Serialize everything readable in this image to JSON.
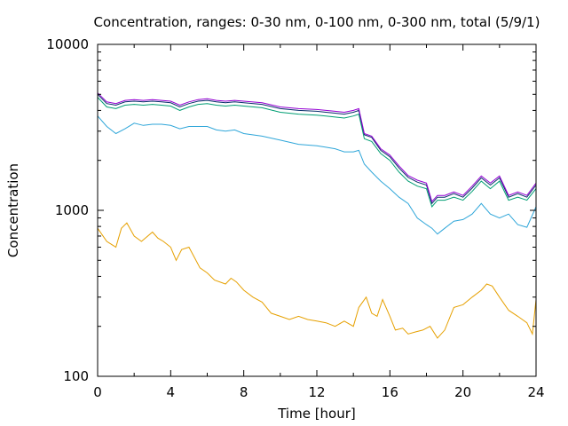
{
  "chart_data": {
    "type": "line",
    "title": "Concentration, ranges: 0-30 nm, 0-100 nm, 0-300 nm, total (5/9/1)",
    "xlabel": "Time [hour]",
    "ylabel": "Concentration",
    "xlim": [
      0,
      24
    ],
    "ylim": [
      100,
      10000
    ],
    "yscale": "log",
    "grid": false,
    "legend": "none",
    "xticks": [
      0,
      4,
      8,
      12,
      16,
      20,
      24
    ],
    "xtick_labels": [
      "0",
      "4",
      "8",
      "12",
      "16",
      "20",
      "24"
    ],
    "yticks": [
      100,
      1000,
      10000
    ],
    "ytick_labels": [
      "100",
      "1000",
      "10000"
    ],
    "series": [
      {
        "color": "#e6a000",
        "x": [
          0,
          0.5,
          1,
          1.3,
          1.6,
          2,
          2.4,
          3,
          3.3,
          3.6,
          4,
          4.3,
          4.6,
          5,
          5.3,
          5.6,
          6,
          6.4,
          7,
          7.3,
          7.6,
          8,
          8.5,
          9,
          9.5,
          10,
          10.5,
          11,
          11.5,
          12,
          12.5,
          13,
          13.5,
          14,
          14.3,
          14.7,
          15,
          15.3,
          15.6,
          16,
          16.3,
          16.7,
          17,
          17.4,
          17.8,
          18.2,
          18.6,
          19,
          19.5,
          20,
          20.5,
          21,
          21.3,
          21.6,
          22,
          22.5,
          23,
          23.5,
          23.8,
          24
        ],
        "values": [
          780,
          650,
          600,
          780,
          840,
          700,
          650,
          740,
          680,
          650,
          600,
          500,
          580,
          600,
          520,
          450,
          420,
          380,
          360,
          390,
          370,
          330,
          300,
          280,
          240,
          230,
          220,
          230,
          220,
          215,
          210,
          200,
          215,
          200,
          260,
          300,
          240,
          230,
          290,
          230,
          190,
          195,
          180,
          185,
          190,
          200,
          170,
          190,
          260,
          270,
          300,
          330,
          360,
          350,
          300,
          250,
          230,
          210,
          180,
          290
        ]
      },
      {
        "color": "#2fa6d9",
        "x": [
          0,
          0.5,
          1,
          1.5,
          2,
          2.5,
          3,
          3.5,
          4,
          4.5,
          5,
          5.5,
          6,
          6.5,
          7,
          7.5,
          8,
          9,
          10,
          11,
          12,
          12.5,
          13,
          13.5,
          14,
          14.3,
          14.6,
          15,
          15.5,
          16,
          16.5,
          17,
          17.5,
          18,
          18.3,
          18.6,
          19,
          19.5,
          20,
          20.5,
          21,
          21.5,
          22,
          22.5,
          23,
          23.5,
          24
        ],
        "values": [
          3700,
          3200,
          2900,
          3100,
          3350,
          3250,
          3300,
          3300,
          3250,
          3100,
          3200,
          3200,
          3200,
          3050,
          3000,
          3050,
          2900,
          2800,
          2650,
          2500,
          2450,
          2400,
          2350,
          2250,
          2250,
          2300,
          1900,
          1700,
          1500,
          1350,
          1200,
          1100,
          900,
          820,
          780,
          720,
          780,
          860,
          880,
          950,
          1100,
          950,
          900,
          950,
          820,
          790,
          1050
        ]
      },
      {
        "color": "#009e73",
        "x": [
          0,
          0.5,
          1,
          1.5,
          2,
          2.5,
          3,
          3.5,
          4,
          4.5,
          5,
          5.5,
          6,
          6.5,
          7,
          7.5,
          8,
          9,
          10,
          11,
          12,
          12.5,
          13,
          13.5,
          14,
          14.3,
          14.6,
          15,
          15.5,
          16,
          16.5,
          17,
          17.5,
          18,
          18.3,
          18.6,
          19,
          19.5,
          20,
          20.5,
          21,
          21.5,
          22,
          22.5,
          23,
          23.5,
          24
        ],
        "values": [
          4800,
          4200,
          4100,
          4300,
          4350,
          4300,
          4350,
          4300,
          4250,
          4000,
          4200,
          4350,
          4400,
          4300,
          4250,
          4300,
          4250,
          4150,
          3900,
          3800,
          3750,
          3700,
          3650,
          3600,
          3700,
          3800,
          2700,
          2600,
          2200,
          2000,
          1700,
          1500,
          1400,
          1350,
          1050,
          1150,
          1150,
          1200,
          1150,
          1300,
          1500,
          1350,
          1500,
          1150,
          1200,
          1150,
          1350
        ]
      },
      {
        "color": "#0a2f6b",
        "x": [
          0,
          0.5,
          1,
          1.5,
          2,
          2.5,
          3,
          3.5,
          4,
          4.5,
          5,
          5.5,
          6,
          6.5,
          7,
          7.5,
          8,
          9,
          10,
          11,
          12,
          12.5,
          13,
          13.5,
          14,
          14.3,
          14.6,
          15,
          15.5,
          16,
          16.5,
          17,
          17.5,
          18,
          18.3,
          18.6,
          19,
          19.5,
          20,
          20.5,
          21,
          21.5,
          22,
          22.5,
          23,
          23.5,
          24
        ],
        "values": [
          5000,
          4400,
          4300,
          4500,
          4550,
          4500,
          4550,
          4500,
          4450,
          4200,
          4400,
          4550,
          4600,
          4500,
          4450,
          4500,
          4450,
          4350,
          4100,
          4000,
          3950,
          3900,
          3850,
          3800,
          3900,
          4000,
          2850,
          2750,
          2300,
          2100,
          1800,
          1580,
          1480,
          1420,
          1100,
          1200,
          1200,
          1260,
          1200,
          1360,
          1570,
          1420,
          1570,
          1200,
          1260,
          1200,
          1420
        ]
      },
      {
        "color": "#9400d3",
        "x": [
          0,
          0.5,
          1,
          1.5,
          2,
          2.5,
          3,
          3.5,
          4,
          4.5,
          5,
          5.5,
          6,
          6.5,
          7,
          7.5,
          8,
          9,
          10,
          11,
          12,
          12.5,
          13,
          13.5,
          14,
          14.3,
          14.6,
          15,
          15.5,
          16,
          16.5,
          17,
          17.5,
          18,
          18.3,
          18.6,
          19,
          19.5,
          20,
          20.5,
          21,
          21.5,
          22,
          22.5,
          23,
          23.5,
          24
        ],
        "values": [
          5100,
          4500,
          4400,
          4600,
          4650,
          4600,
          4650,
          4600,
          4550,
          4300,
          4500,
          4650,
          4700,
          4600,
          4550,
          4600,
          4550,
          4450,
          4200,
          4100,
          4050,
          4000,
          3950,
          3900,
          4000,
          4100,
          2900,
          2800,
          2350,
          2150,
          1850,
          1620,
          1520,
          1460,
          1130,
          1230,
          1230,
          1290,
          1230,
          1400,
          1610,
          1460,
          1610,
          1230,
          1290,
          1230,
          1460
        ]
      }
    ]
  }
}
